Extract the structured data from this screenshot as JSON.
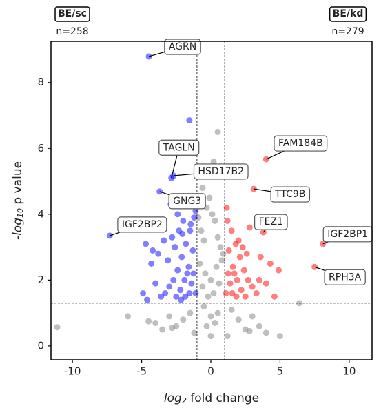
{
  "chart_data": {
    "type": "scatter",
    "xlabel": {
      "base": "log",
      "sub": "2",
      "rest": " fold change"
    },
    "ylabel": {
      "base": "-log",
      "sub": "10",
      "rest": " p value"
    },
    "xlim": [
      -11.55,
      11.65
    ],
    "ylim": [
      -0.42,
      9.25
    ],
    "xticks": [
      -10,
      -5,
      0,
      5,
      10
    ],
    "yticks": [
      0,
      2,
      4,
      6,
      8
    ],
    "vlines": [
      -1,
      1
    ],
    "hline": 1.3,
    "left_badge": {
      "title": "BE/sc",
      "count": "n=258",
      "color": "#0000ff"
    },
    "right_badge": {
      "title": "BE/kd",
      "count": "n=279",
      "color": "#ff0000"
    },
    "series": [
      {
        "color": "#808080",
        "x": [
          -0.9,
          -0.7,
          -0.5,
          -0.3,
          -0.1,
          0.1,
          0.3,
          0.5,
          0.7,
          0.9,
          -0.8,
          -0.4,
          0,
          0.4,
          0.8,
          -0.6,
          -0.2,
          0.2,
          0.6,
          -0.5,
          0,
          0.5,
          -0.3,
          0.3,
          0,
          -1.5,
          -2,
          -2.5,
          -3,
          -3.5,
          -4,
          1.5,
          2,
          2.5,
          3,
          3.5,
          4,
          5,
          6.4,
          -11.1,
          -4.5,
          -6,
          0.9,
          0.5,
          -1.2,
          1.2,
          -2.8,
          2.8,
          0.2,
          -0.6
        ],
        "values": [
          3.9,
          3.5,
          3.2,
          4.2,
          4.5,
          4.0,
          3.8,
          3.3,
          3.0,
          2.8,
          2.5,
          2.2,
          2.0,
          2.4,
          2.6,
          1.8,
          1.5,
          1.6,
          1.9,
          1.2,
          0.9,
          1.0,
          0.6,
          0.7,
          0.3,
          1.0,
          0.8,
          0.6,
          0.9,
          0.5,
          0.7,
          1.1,
          0.8,
          0.5,
          0.9,
          0.6,
          0.4,
          0.3,
          1.3,
          0.57,
          0.75,
          0.9,
          5.2,
          6.5,
          0.4,
          0.3,
          0.55,
          0.45,
          5.6,
          4.8
        ]
      },
      {
        "color": "#0000ff",
        "x": [
          -1.2,
          -1.5,
          -1.8,
          -2.1,
          -2.4,
          -2.7,
          -3,
          -3.3,
          -3.6,
          -4,
          -4.3,
          -4.6,
          -4.9,
          -1.3,
          -1.6,
          -1.9,
          -2.2,
          -2.5,
          -2.8,
          -3.1,
          -1.1,
          -1.4,
          -1.7,
          -2,
          -2.3,
          -2.6,
          -1.25,
          -1.55,
          -1.85,
          -2.15,
          -3.4,
          -3.8,
          -4.2,
          -4.7,
          -1.55,
          -2.9,
          -2.4,
          -1.1,
          -1.45,
          -2.05
        ],
        "values": [
          3.9,
          3.5,
          3.1,
          2.7,
          2.3,
          2,
          1.8,
          1.6,
          1.5,
          1.9,
          2.5,
          1.4,
          1.6,
          2.9,
          2.4,
          2,
          1.7,
          1.5,
          3.3,
          2.6,
          1.6,
          1.9,
          2.2,
          3.8,
          3.5,
          3.0,
          2.2,
          1.6,
          1.5,
          1.4,
          3.2,
          2.8,
          2.9,
          3.1,
          6.85,
          4.3,
          4.0,
          4.1,
          3.7,
          3.4
        ]
      },
      {
        "color": "#ff0000",
        "x": [
          1.2,
          1.5,
          1.8,
          2.1,
          2.4,
          2.7,
          3,
          3.3,
          3.6,
          4,
          4.3,
          4.6,
          4.9,
          1.3,
          1.6,
          1.9,
          2.2,
          2.5,
          2.8,
          1.1,
          1.4,
          1.7,
          2,
          2.3,
          1.25,
          1.55,
          1.85,
          3.5,
          2.6,
          1.15
        ],
        "values": [
          3.8,
          3.5,
          3.1,
          2.7,
          2.3,
          2,
          1.8,
          1.6,
          2.7,
          1.9,
          2.5,
          1.5,
          2.3,
          2.9,
          2.4,
          2,
          1.7,
          1.5,
          3.6,
          1.6,
          1.9,
          2.2,
          3.2,
          3.0,
          2.2,
          1.6,
          1.5,
          2.0,
          2.8,
          4.2
        ]
      }
    ],
    "annotations": [
      {
        "label": "AGRN",
        "x": -4.48,
        "y": 8.79
      },
      {
        "label": "TAGLN",
        "x": -2.85,
        "y": 5.1
      },
      {
        "label": "HSD17B2",
        "x": -2.7,
        "y": 5.17
      },
      {
        "label": "GNG3",
        "x": -3.7,
        "y": 4.69
      },
      {
        "label": "IGF2BP2",
        "x": -7.3,
        "y": 3.35
      },
      {
        "label": "FAM184B",
        "x": 4.0,
        "y": 5.67
      },
      {
        "label": "TTC9B",
        "x": 3.1,
        "y": 4.77
      },
      {
        "label": "FEZ1",
        "x": 3.8,
        "y": 3.45
      },
      {
        "label": "IGF2BP1",
        "x": 8.1,
        "y": 3.1
      },
      {
        "label": "RPH3A",
        "x": 7.5,
        "y": 2.4
      }
    ]
  }
}
